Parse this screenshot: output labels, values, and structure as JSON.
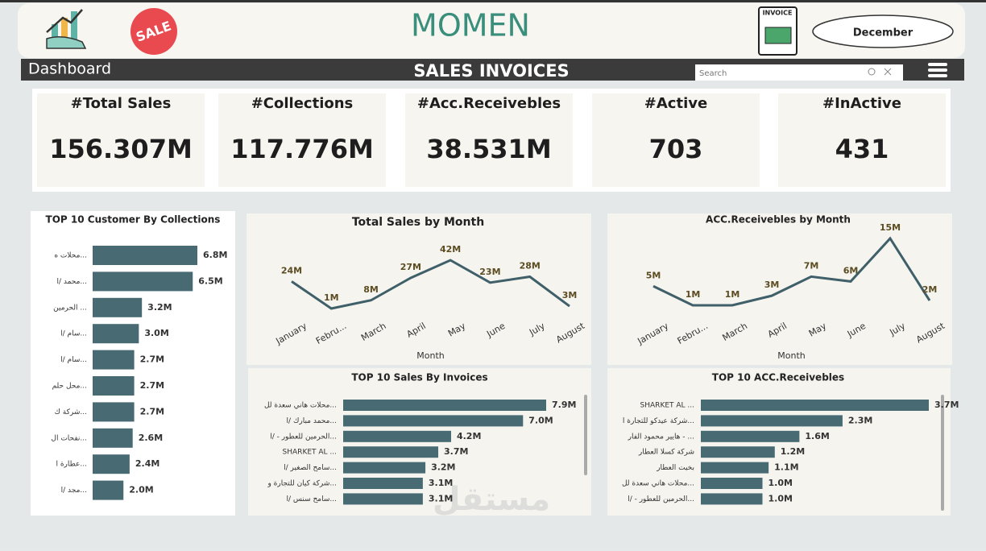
{
  "header": {
    "brand": "MOMEN",
    "sale_badge": "SALE",
    "invoice_icon": "INVOICE",
    "month_filter": "December"
  },
  "nav": {
    "title": "Dashboard",
    "page_title": "SALES INVOICES",
    "search_placeholder": "Search"
  },
  "kpis": [
    {
      "label": "#Total Sales",
      "value": "156.307M"
    },
    {
      "label": "#Collections",
      "value": "117.776M"
    },
    {
      "label": "#Acc.Receivebles",
      "value": "38.531M"
    },
    {
      "label": "#Active",
      "value": "703"
    },
    {
      "label": "#InActive",
      "value": "431"
    }
  ],
  "watermark": "مستقل",
  "chart_data": [
    {
      "type": "bar",
      "orientation": "horizontal",
      "title": "TOP 10 Customer By Collections",
      "color": "#476a73",
      "categories": [
        "محلات ه...",
        "محمد /ا...",
        "الحرمين ...",
        "سام /ا...",
        "سام /ا...",
        "محل حلم...",
        "شركة ك...",
        "نفحات ال...",
        "عطارة ا...",
        "مجد /ا..."
      ],
      "values": [
        6.8,
        6.5,
        3.2,
        3.0,
        2.7,
        2.7,
        2.7,
        2.6,
        2.4,
        2.0
      ],
      "value_labels": [
        "6.8M",
        "6.5M",
        "3.2M",
        "3.0M",
        "2.7M",
        "2.7M",
        "2.7M",
        "2.6M",
        "2.4M",
        "2.0M"
      ]
    },
    {
      "type": "line",
      "title": "Total Sales by Month",
      "x_label": "Month",
      "color": "#3f5f69",
      "categories": [
        "January",
        "Febru...",
        "March",
        "April",
        "May",
        "June",
        "July",
        "August"
      ],
      "values": [
        24,
        1,
        8,
        27,
        42,
        23,
        28,
        3
      ],
      "value_labels": [
        "24M",
        "1M",
        "8M",
        "27M",
        "42M",
        "23M",
        "28M",
        "3M"
      ]
    },
    {
      "type": "line",
      "title": "ACC.Receivebles by Month",
      "x_label": "Month",
      "color": "#3f5f69",
      "categories": [
        "January",
        "Febru...",
        "March",
        "April",
        "May",
        "June",
        "July",
        "August"
      ],
      "values": [
        5,
        1,
        1,
        3,
        7,
        6,
        15,
        2
      ],
      "value_labels": [
        "5M",
        "1M",
        "1M",
        "3M",
        "7M",
        "6M",
        "15M",
        "2M"
      ]
    },
    {
      "type": "bar",
      "orientation": "horizontal",
      "title": "TOP 10 Sales By Invoices",
      "color": "#476a73",
      "categories": [
        "محلات هاني سعدة لل...",
        "محمد مبارك /ا...",
        "الحرمين للعطور - /ا...",
        "SHARKET AL ...",
        "سامح الصغير /ا...",
        "شركة كيان للتجارة و...",
        "سامح سنس /ا..."
      ],
      "values": [
        7.9,
        7.0,
        4.2,
        3.7,
        3.2,
        3.1,
        3.1
      ],
      "value_labels": [
        "7.9M",
        "7.0M",
        "4.2M",
        "3.7M",
        "3.2M",
        "3.1M",
        "3.1M"
      ]
    },
    {
      "type": "bar",
      "orientation": "horizontal",
      "title": "TOP 10 ACC.Receivebles",
      "color": "#476a73",
      "categories": [
        "SHARKET AL ...",
        "شركة عيدكو للتجارة ا...",
        "هايير محمود الفار - ...",
        "شركة كسلا العطار",
        "بخيت العطار",
        "محلات هاني سعدة لل...",
        "الحرمين للعطور - /ا..."
      ],
      "values": [
        3.7,
        2.3,
        1.6,
        1.2,
        1.1,
        1.0,
        1.0
      ],
      "value_labels": [
        "3.7M",
        "2.3M",
        "1.6M",
        "1.2M",
        "1.1M",
        "1.0M",
        "1.0M"
      ]
    }
  ]
}
